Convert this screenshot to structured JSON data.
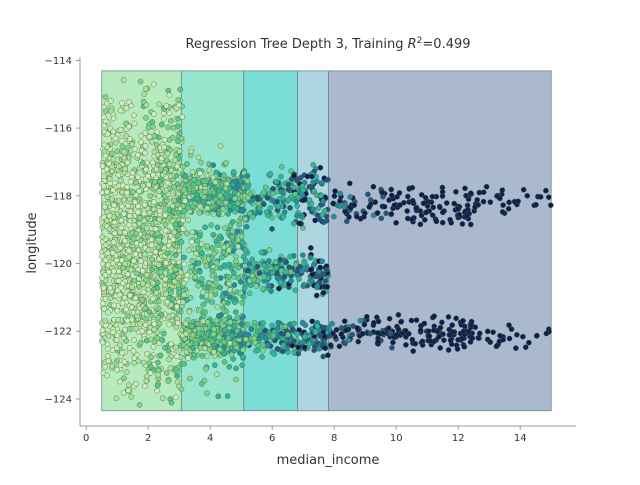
{
  "chart_data": {
    "type": "scatter",
    "title": "Regression Tree Depth 3, Training R²=0.499",
    "title_main": "Regression Tree Depth 3, Training ",
    "title_r": "R",
    "title_sup": "2",
    "title_value": "=0.499",
    "xlabel": "median_income",
    "ylabel": "longitude",
    "xlim": [
      -0.2,
      15.8
    ],
    "ylim": [
      -124.8,
      -113.9
    ],
    "xticks": [
      0,
      2,
      4,
      6,
      8,
      10,
      12,
      14
    ],
    "yticks": [
      -114,
      -116,
      -118,
      -120,
      -122,
      -124
    ],
    "grid": false,
    "legend": "none",
    "regions": [
      {
        "x0": 0.5,
        "x1": 3.07,
        "y0": -124.35,
        "y1": -114.31,
        "color": "#9fe3a8"
      },
      {
        "x0": 3.07,
        "x1": 5.08,
        "y0": -124.35,
        "y1": -114.31,
        "color": "#76dcbd"
      },
      {
        "x0": 5.08,
        "x1": 6.82,
        "y0": -124.35,
        "y1": -114.31,
        "color": "#4fd3c8"
      },
      {
        "x0": 6.82,
        "x1": 7.82,
        "y0": -124.35,
        "y1": -114.31,
        "color": "#94c8d6"
      },
      {
        "x0": 7.82,
        "x1": 15.0,
        "y0": -124.35,
        "y1": -114.31,
        "color": "#8ea2bd"
      }
    ],
    "palette": [
      "#c9efb4",
      "#a8e49a",
      "#7fd68b",
      "#55c98a",
      "#2fb79a",
      "#1f8fa0",
      "#22577e",
      "#0e1f4d"
    ],
    "point_groups": [
      {
        "x_range": [
          0.5,
          3.1
        ],
        "y_bands": [
          [
            -124.3,
            -114.4
          ]
        ],
        "count": 1400
      },
      {
        "x_range": [
          3.1,
          5.1
        ],
        "y_bands": [
          [
            -124.2,
            -116.2
          ],
          [
            -122.8,
            -121.6
          ],
          [
            -118.6,
            -117.2
          ]
        ],
        "count": 1000
      },
      {
        "x_range": [
          5.1,
          7.8
        ],
        "y_bands": [
          [
            -122.8,
            -121.6
          ],
          [
            -119.0,
            -117.0
          ],
          [
            -121.0,
            -119.5
          ]
        ],
        "count": 600
      },
      {
        "x_range": [
          7.8,
          12.5
        ],
        "y_bands": [
          [
            -122.6,
            -121.5
          ],
          [
            -119.0,
            -117.6
          ]
        ],
        "count": 320
      },
      {
        "x_range": [
          12.5,
          15.0
        ],
        "y_bands": [
          [
            -122.6,
            -121.7
          ],
          [
            -118.8,
            -117.6
          ]
        ],
        "count": 60
      }
    ]
  }
}
